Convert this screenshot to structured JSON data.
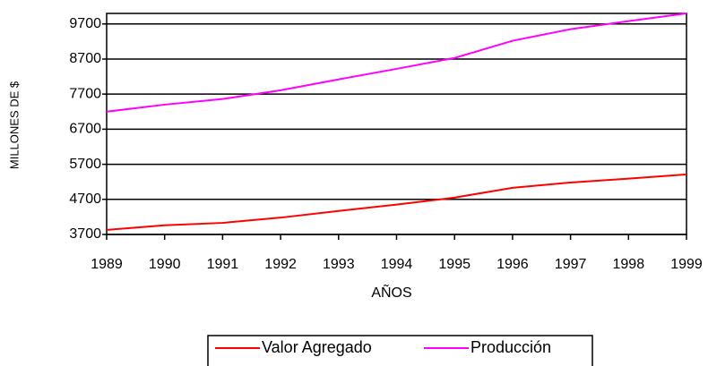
{
  "chart_data": {
    "type": "line",
    "x": [
      1989,
      1990,
      1991,
      1992,
      1993,
      1994,
      1995,
      1996,
      1997,
      1998,
      1999
    ],
    "series": [
      {
        "name": "Valor Agregado",
        "color": "#ff0000",
        "values": [
          3830,
          3960,
          4030,
          4180,
          4370,
          4550,
          4750,
          5030,
          5180,
          5290,
          5410
        ]
      },
      {
        "name": "Producción",
        "color": "#ff00ff",
        "values": [
          7200,
          7400,
          7560,
          7810,
          8120,
          8420,
          8730,
          9220,
          9550,
          9780,
          10000
        ]
      }
    ],
    "xlim": [
      1989,
      1999
    ],
    "xticks": [
      1989,
      1990,
      1991,
      1992,
      1993,
      1994,
      1995,
      1996,
      1997,
      1998,
      1999
    ],
    "ylim": [
      3700,
      10000
    ],
    "yticks": [
      3700,
      4700,
      5700,
      6700,
      7700,
      8700,
      9700
    ],
    "xlabel": "AÑOS",
    "ylabel": "MILLONES DE $",
    "grid": true,
    "legend": "bottom"
  }
}
